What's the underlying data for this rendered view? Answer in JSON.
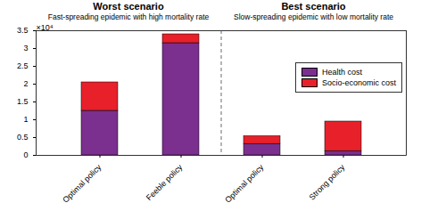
{
  "chart_data": {
    "type": "bar",
    "stacked": true,
    "categories": [
      "Optimal policy",
      "Feeble policy",
      "Optimal policy",
      "Strong policy"
    ],
    "series": [
      {
        "name": "Health cost",
        "color": "#7b2f8e",
        "values": [
          1.25,
          3.15,
          0.32,
          0.12
        ]
      },
      {
        "name": "Socio-economic cost",
        "color": "#e8202a",
        "values": [
          0.8,
          0.25,
          0.22,
          0.83
        ]
      }
    ],
    "ylim": [
      0,
      3.5
    ],
    "yticks": [
      0,
      0.5,
      1,
      1.5,
      2,
      2.5,
      3,
      3.5
    ],
    "y_multiplier_label": "×10⁴",
    "annotations": [
      {
        "text": "Worst scenario",
        "subtext": "Fast-spreading epidemic with high mortality rate"
      },
      {
        "text": "Best scenario",
        "subtext": "Slow-spreading epidemic with low mortality rate"
      }
    ],
    "legend": "right",
    "grid": false
  }
}
